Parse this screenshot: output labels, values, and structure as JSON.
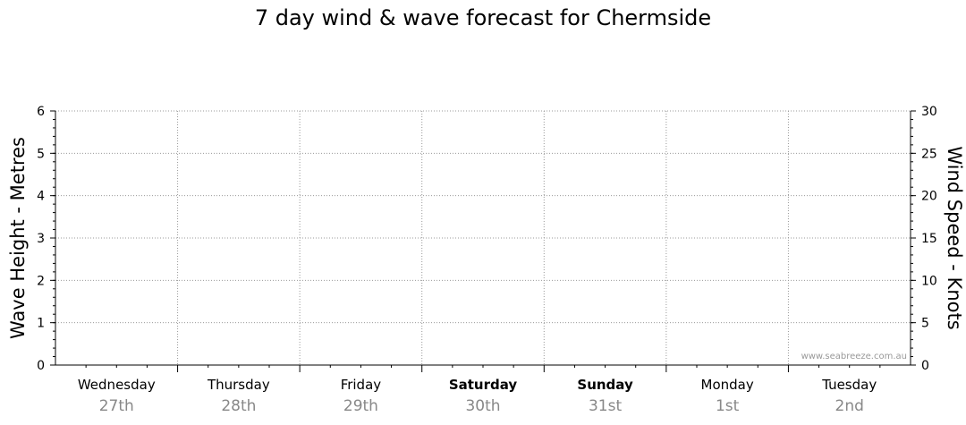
{
  "title": "7 day wind & wave forecast for Chermside",
  "watermark": "www.seabreeze.com.au",
  "chart_data": {
    "type": "line",
    "series": [],
    "y_left": {
      "label": "Wave Height - Metres",
      "range": [
        0,
        6
      ],
      "ticks": [
        0,
        1,
        2,
        3,
        4,
        5,
        6
      ]
    },
    "y_right": {
      "label": "Wind Speed - Knots",
      "range": [
        0,
        30
      ],
      "ticks": [
        0,
        5,
        10,
        15,
        20,
        25,
        30
      ]
    },
    "grid": true,
    "days": [
      {
        "name": "Wednesday",
        "date": "27th",
        "bold": false
      },
      {
        "name": "Thursday",
        "date": "28th",
        "bold": false
      },
      {
        "name": "Friday",
        "date": "29th",
        "bold": false
      },
      {
        "name": "Saturday",
        "date": "30th",
        "bold": true
      },
      {
        "name": "Sunday",
        "date": "31st",
        "bold": true
      },
      {
        "name": "Monday",
        "date": "1st",
        "bold": false
      },
      {
        "name": "Tuesday",
        "date": "2nd",
        "bold": false
      }
    ]
  }
}
